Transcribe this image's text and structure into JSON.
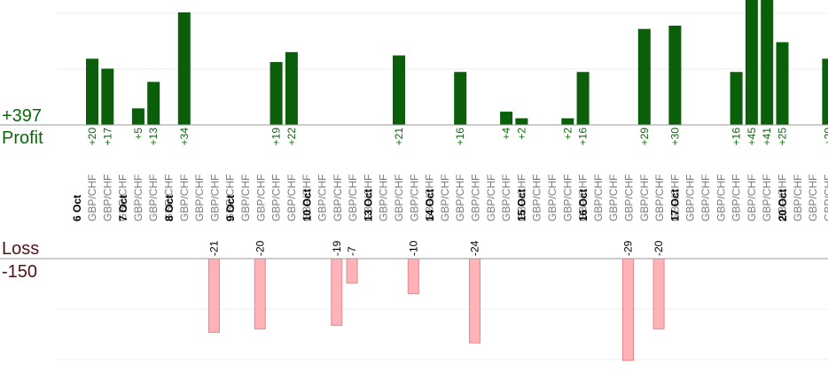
{
  "colors": {
    "profit_bar": "#0b5f0b",
    "profit_text": "#0a6a0a",
    "loss_bar": "#ffb3b8",
    "loss_stroke": "#e9848c",
    "loss_text": "#4a1515",
    "axis": "#9a9a9a",
    "grid": "#ececec"
  },
  "labels": {
    "total_profit": "+397",
    "profit": "Profit",
    "loss": "Loss",
    "total_loss": "-150"
  },
  "chart_data": {
    "type": "bar",
    "grid": true,
    "profit_scale_max": 34,
    "loss_scale_max": 29,
    "categories": [
      {
        "pair": "GBP/CHF",
        "profit": 20
      },
      {
        "pair": "GBP/CHF",
        "profit": 17
      },
      {
        "pair": "GBP/CHF"
      },
      {
        "pair": "GBP/CHF",
        "profit": 5
      },
      {
        "pair": "GBP/CHF",
        "profit": 13
      },
      {
        "pair": "GBP/CHF"
      },
      {
        "pair": "GBP/CHF",
        "profit": 34
      },
      {
        "pair": "GBP/CHF"
      },
      {
        "pair": "GBP/CHF",
        "loss": -21
      },
      {
        "pair": "GBP/CHF"
      },
      {
        "pair": "GBP/CHF"
      },
      {
        "pair": "GBP/CHF",
        "loss": -20
      },
      {
        "pair": "GBP/CHF",
        "profit": 19
      },
      {
        "pair": "GBP/CHF",
        "profit": 22
      },
      {
        "pair": "GBP/CHF"
      },
      {
        "pair": "GBP/CHF"
      },
      {
        "pair": "GBP/CHF",
        "loss": -19
      },
      {
        "pair": "GBP/CHF",
        "loss": -7
      },
      {
        "pair": "GBP/CHF"
      },
      {
        "pair": "GBP/CHF"
      },
      {
        "pair": "GBP/CHF",
        "profit": 21
      },
      {
        "pair": "GBP/CHF",
        "loss": -10
      },
      {
        "pair": "GBP/CHF"
      },
      {
        "pair": "GBP/CHF"
      },
      {
        "pair": "GBP/CHF",
        "profit": 16
      },
      {
        "pair": "GBP/CHF",
        "loss": -24
      },
      {
        "pair": "GBP/CHF"
      },
      {
        "pair": "GBP/CHF",
        "profit": 4
      },
      {
        "pair": "GBP/CHF",
        "profit": 2
      },
      {
        "pair": "GBP/CHF"
      },
      {
        "pair": "GBP/CHF"
      },
      {
        "pair": "GBP/CHF",
        "profit": 2
      },
      {
        "pair": "GBP/CHF",
        "profit": 16
      },
      {
        "pair": "GBP/CHF"
      },
      {
        "pair": "GBP/CHF"
      },
      {
        "pair": "GBP/CHF",
        "loss": -29
      },
      {
        "pair": "GBP/CHF",
        "profit": 29
      },
      {
        "pair": "GBP/CHF",
        "loss": -20
      },
      {
        "pair": "GBP/CHF",
        "profit": 30
      },
      {
        "pair": "GBP/CHF"
      },
      {
        "pair": "GBP/CHF"
      },
      {
        "pair": "GBP/CHF"
      },
      {
        "pair": "GBP/CHF",
        "profit": 16
      },
      {
        "pair": "GBP/CHF",
        "profit": 45
      },
      {
        "pair": "GBP/CHF",
        "profit": 41
      },
      {
        "pair": "GBP/CHF",
        "profit": 25
      },
      {
        "pair": "GBP/CHF"
      },
      {
        "pair": "GBP/CHF"
      },
      {
        "pair": "GBP/CHF",
        "profit": 20
      },
      {
        "pair": "GBP/CHF"
      }
    ],
    "dates": [
      {
        "label": "6 Oct",
        "at": 0
      },
      {
        "label": "7 Oct",
        "at": 3
      },
      {
        "label": "8 Oct",
        "at": 6
      },
      {
        "label": "9 Oct",
        "at": 10
      },
      {
        "label": "10 Oct",
        "at": 15
      },
      {
        "label": "13 Oct",
        "at": 19
      },
      {
        "label": "14 Oct",
        "at": 23
      },
      {
        "label": "15 Oct",
        "at": 29
      },
      {
        "label": "16 Oct",
        "at": 33
      },
      {
        "label": "17 Oct",
        "at": 39
      },
      {
        "label": "20 Oct",
        "at": 46
      }
    ]
  }
}
